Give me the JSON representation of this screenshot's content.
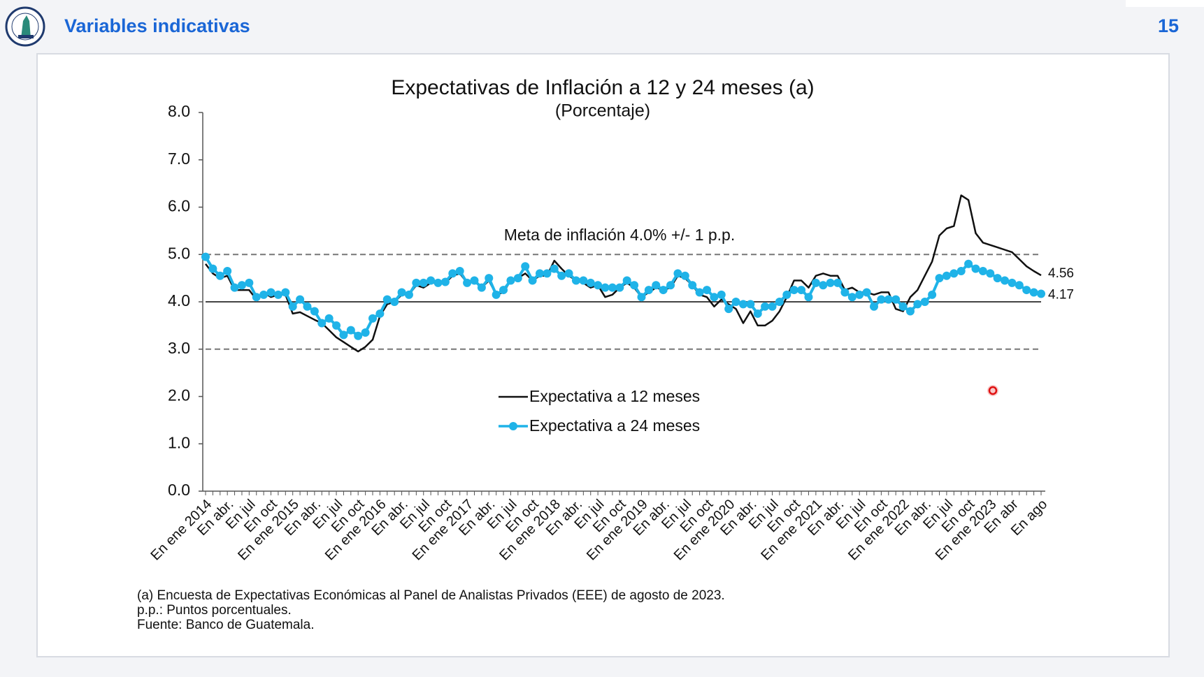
{
  "header": {
    "title": "Variables indicativas",
    "page": "15"
  },
  "chart_data": {
    "type": "line",
    "title": "Expectativas de Inflación a 12 y 24 meses (a)",
    "subtitle": "(Porcentaje)",
    "annotation": "Meta de inflación 4.0% +/- 1 p.p.",
    "categories": [
      "En ene 2014",
      null,
      null,
      "En abr.",
      null,
      null,
      "En jul",
      null,
      null,
      "En oct",
      null,
      null,
      "En ene 2015",
      null,
      null,
      "En abr.",
      null,
      null,
      "En jul",
      null,
      null,
      "En oct",
      null,
      null,
      "En ene 2016",
      null,
      null,
      "En abr.",
      null,
      null,
      "En jul",
      null,
      null,
      "En oct",
      null,
      null,
      "En ene 2017",
      null,
      null,
      "En abr.",
      null,
      null,
      "En jul",
      null,
      null,
      "En oct",
      null,
      null,
      "En ene 2018",
      null,
      null,
      "En abr.",
      null,
      null,
      "En jul",
      null,
      null,
      "En oct",
      null,
      null,
      "En ene 2019",
      null,
      null,
      "En abr.",
      null,
      null,
      "En jul",
      null,
      null,
      "En oct",
      null,
      null,
      "En ene 2020",
      null,
      null,
      "En abr.",
      null,
      null,
      "En jul",
      null,
      null,
      "En oct",
      null,
      null,
      "En ene 2021",
      null,
      null,
      "En abr.",
      null,
      null,
      "En jul",
      null,
      null,
      "En oct",
      null,
      null,
      "En ene 2022",
      null,
      null,
      "En abr.",
      null,
      null,
      "En jul",
      null,
      null,
      "En oct",
      null,
      null,
      "En ene 2023",
      null,
      null,
      "En abr",
      null,
      null,
      null,
      "En ago"
    ],
    "series": [
      {
        "name": "Expectativa a 12 meses",
        "color": "#111111",
        "markers": false,
        "values": [
          4.8,
          4.6,
          4.5,
          4.55,
          4.25,
          4.25,
          4.25,
          4.05,
          4.2,
          4.1,
          4.15,
          4.15,
          3.75,
          3.78,
          3.7,
          3.62,
          3.55,
          3.4,
          3.25,
          3.15,
          3.05,
          2.95,
          3.05,
          3.2,
          3.7,
          3.95,
          4.0,
          4.15,
          4.15,
          4.35,
          4.3,
          4.4,
          4.4,
          4.4,
          4.55,
          4.6,
          4.4,
          4.45,
          4.3,
          4.45,
          4.15,
          4.2,
          4.45,
          4.5,
          4.6,
          4.45,
          4.55,
          4.55,
          4.87,
          4.7,
          4.55,
          4.45,
          4.4,
          4.3,
          4.35,
          4.1,
          4.15,
          4.3,
          4.4,
          4.3,
          4.1,
          4.2,
          4.3,
          4.25,
          4.3,
          4.55,
          4.5,
          4.35,
          4.15,
          4.1,
          3.9,
          4.05,
          3.95,
          3.85,
          3.55,
          3.8,
          3.5,
          3.5,
          3.6,
          3.8,
          4.1,
          4.45,
          4.45,
          4.3,
          4.55,
          4.6,
          4.55,
          4.55,
          4.25,
          4.3,
          4.2,
          4.2,
          4.15,
          4.2,
          4.2,
          3.85,
          3.8,
          4.1,
          4.25,
          4.55,
          4.85,
          5.4,
          5.55,
          5.6,
          6.25,
          6.15,
          5.45,
          5.25,
          5.2,
          5.15,
          5.1,
          5.05,
          4.9,
          4.75,
          4.65,
          4.56
        ]
      },
      {
        "name": "Expectativa a 24 meses",
        "color": "#1fb3e8",
        "markers": true,
        "values": [
          4.95,
          4.7,
          4.55,
          4.65,
          4.3,
          4.35,
          4.4,
          4.1,
          4.15,
          4.2,
          4.15,
          4.2,
          3.9,
          4.05,
          3.9,
          3.8,
          3.55,
          3.65,
          3.5,
          3.3,
          3.4,
          3.28,
          3.35,
          3.65,
          3.75,
          4.05,
          4.0,
          4.2,
          4.15,
          4.4,
          4.4,
          4.45,
          4.4,
          4.42,
          4.6,
          4.65,
          4.4,
          4.45,
          4.3,
          4.5,
          4.15,
          4.25,
          4.45,
          4.5,
          4.75,
          4.45,
          4.6,
          4.6,
          4.7,
          4.55,
          4.6,
          4.45,
          4.45,
          4.4,
          4.35,
          4.3,
          4.3,
          4.3,
          4.45,
          4.35,
          4.1,
          4.25,
          4.35,
          4.25,
          4.35,
          4.6,
          4.55,
          4.35,
          4.2,
          4.25,
          4.1,
          4.15,
          3.85,
          4.0,
          3.95,
          3.95,
          3.75,
          3.9,
          3.9,
          4.0,
          4.15,
          4.25,
          4.25,
          4.1,
          4.4,
          4.35,
          4.4,
          4.4,
          4.2,
          4.1,
          4.15,
          4.2,
          3.9,
          4.05,
          4.05,
          4.05,
          3.9,
          3.8,
          3.95,
          4.0,
          4.15,
          4.5,
          4.55,
          4.6,
          4.65,
          4.8,
          4.7,
          4.65,
          4.6,
          4.5,
          4.45,
          4.4,
          4.35,
          4.25,
          4.2,
          4.17
        ]
      }
    ],
    "reference_lines": [
      {
        "value": 5.0,
        "style": "dashed"
      },
      {
        "value": 4.0,
        "style": "solid"
      },
      {
        "value": 3.0,
        "style": "dashed"
      }
    ],
    "ylim": [
      0,
      8
    ],
    "yticks": [
      {
        "value": 0,
        "label": "0.0"
      },
      {
        "value": 1,
        "label": "1.0"
      },
      {
        "value": 2,
        "label": "2.0"
      },
      {
        "value": 3,
        "label": "3.0"
      },
      {
        "value": 4,
        "label": "4.0"
      },
      {
        "value": 5,
        "label": "5.0"
      },
      {
        "value": 6,
        "label": "6.0"
      },
      {
        "value": 7,
        "label": "7.0"
      },
      {
        "value": 8,
        "label": "8.0"
      }
    ],
    "grid": false,
    "footnotes": [
      "(a) Encuesta de Expectativas Económicas al Panel de Analistas Privados (EEE) de agosto de 2023.",
      "p.p.: Puntos porcentuales.",
      "Fuente: Banco de Guatemala."
    ]
  }
}
